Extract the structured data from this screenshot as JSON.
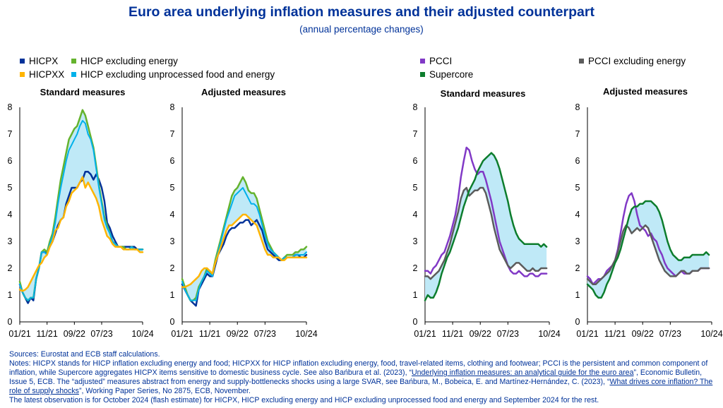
{
  "title": "Euro area underlying inflation measures and their adjusted counterpart",
  "subtitle": "(annual percentage changes)",
  "legend_left": [
    {
      "label": "HICPX",
      "color": "#003299"
    },
    {
      "label": "HICP excluding energy",
      "color": "#65b32e"
    },
    {
      "label": "HICPXX",
      "color": "#ffb400"
    },
    {
      "label": "HICP excluding unprocessed food and energy",
      "color": "#00b1ea"
    }
  ],
  "legend_right": [
    {
      "label": "PCCI",
      "color": "#8139c6"
    },
    {
      "label": "PCCI excluding energy",
      "color": "#5c5c5c"
    },
    {
      "label": "Supercore",
      "color": "#0d7d2d"
    }
  ],
  "notes": {
    "sources": "Sources: Eurostat and ECB staff calculations.",
    "n1": "Notes: HICPX stands for HICP inflation excluding energy and food; HICPXX for HICP inflation excluding energy, food, travel-related items, clothing and footwear; PCCI is the persistent and common component of inflation, while Supercore aggregates HICPX items sensitive to domestic business cycle. See also Bańbura et al. (2023), “",
    "link1": "Underlying inflation measures: an analytical guide for the euro area",
    "n2": "”, Economic Bulletin, Issue 5, ECB. The “adjusted” measures abstract from energy and supply-bottlenecks shocks using a large SVAR, see Bańbura, M., Bobeica, E. and Martínez-Hernández, C. (2023), “",
    "link2": "What drives core inflation? The role of supply shocks",
    "n3": "”, Working Paper Series, No 2875, ECB, November.",
    "latest": "The latest observation is for October 2024 (flash estimate) for HICPX, HICP excluding energy and HICP excluding unprocessed food and energy and September 2024 for the rest."
  },
  "chart_data": [
    {
      "type": "line",
      "title": "Standard measures",
      "ylim": [
        0,
        8
      ],
      "yticks": [
        "0",
        "1",
        "2",
        "3",
        "4",
        "5",
        "6",
        "7",
        "8"
      ],
      "xrange": [
        0,
        45
      ],
      "xticks": [
        {
          "label": "01/21",
          "x": 0
        },
        {
          "label": "11/21",
          "x": 10
        },
        {
          "label": "09/22",
          "x": 20
        },
        {
          "label": "07/23",
          "x": 30
        },
        {
          "label": "10/24",
          "x": 45
        }
      ],
      "shade_between": [
        "HICPXX",
        "HICP excluding energy"
      ],
      "shade_color": "#bfe9f7",
      "series": [
        {
          "name": "HICPX",
          "color": "#003299",
          "width": 2.5,
          "x0": 0,
          "values": [
            1.4,
            1.1,
            0.9,
            0.7,
            0.9,
            0.8,
            1.6,
            2.0,
            2.6,
            2.6,
            2.6,
            2.8,
            3.0,
            3.3,
            3.6,
            3.8,
            3.9,
            4.4,
            4.7,
            5.0,
            5.0,
            5.0,
            5.2,
            5.3,
            5.6,
            5.6,
            5.5,
            5.3,
            5.5,
            5.3,
            5.0,
            4.5,
            3.7,
            3.5,
            3.2,
            3.0,
            2.8,
            2.8,
            2.8,
            2.8,
            2.8,
            2.8,
            2.8,
            2.7,
            2.7,
            2.7
          ]
        },
        {
          "name": "HICP excluding energy",
          "color": "#65b32e",
          "width": 2.5,
          "x0": 0,
          "values": [
            1.5,
            1.1,
            0.9,
            0.8,
            0.9,
            0.9,
            1.6,
            2.0,
            2.6,
            2.7,
            2.6,
            3.0,
            3.3,
            3.9,
            4.6,
            5.3,
            5.8,
            6.3,
            6.8,
            7.0,
            7.2,
            7.3,
            7.6,
            7.9,
            7.7,
            7.3,
            6.9,
            6.5,
            5.8,
            5.1,
            4.5,
            3.9,
            3.6,
            3.3,
            3.0,
            2.9,
            2.8,
            2.8,
            2.8,
            2.7,
            2.7,
            2.8,
            2.7,
            2.7,
            2.7,
            2.7
          ]
        },
        {
          "name": "HICP excluding unprocessed food and energy",
          "color": "#00b1ea",
          "width": 2,
          "x0": 0,
          "values": [
            1.4,
            1.1,
            0.9,
            0.8,
            0.9,
            0.9,
            1.6,
            2.0,
            2.6,
            2.6,
            2.5,
            2.9,
            3.2,
            3.7,
            4.4,
            5.0,
            5.5,
            6.0,
            6.4,
            6.6,
            6.8,
            7.0,
            7.3,
            7.5,
            7.4,
            7.0,
            6.8,
            6.4,
            5.7,
            5.0,
            4.4,
            3.8,
            3.5,
            3.3,
            3.0,
            2.9,
            2.8,
            2.8,
            2.7,
            2.7,
            2.7,
            2.8,
            2.7,
            2.7,
            2.7,
            2.7
          ]
        },
        {
          "name": "HICPXX",
          "color": "#ffb400",
          "width": 2.5,
          "x0": 0,
          "values": [
            1.2,
            1.15,
            1.2,
            1.3,
            1.5,
            1.7,
            1.9,
            2.1,
            2.2,
            2.4,
            2.5,
            2.8,
            3.0,
            3.4,
            3.5,
            3.8,
            3.9,
            4.3,
            4.5,
            4.8,
            4.9,
            5.0,
            5.2,
            5.4,
            5.0,
            5.2,
            5.0,
            4.8,
            4.6,
            4.3,
            3.8,
            3.5,
            3.2,
            3.1,
            2.9,
            2.8,
            2.8,
            2.8,
            2.7,
            2.7,
            2.7,
            2.7,
            2.7,
            2.7,
            2.6,
            2.6
          ]
        }
      ]
    },
    {
      "type": "line",
      "title": "Adjusted measures",
      "ylim": [
        0,
        8
      ],
      "yticks": [
        "0",
        "1",
        "2",
        "3",
        "4",
        "5",
        "6",
        "7",
        "8"
      ],
      "xrange": [
        0,
        45
      ],
      "xticks": [
        {
          "label": "01/21",
          "x": 0
        },
        {
          "label": "11/21",
          "x": 10
        },
        {
          "label": "09/22",
          "x": 20
        },
        {
          "label": "07/23",
          "x": 30
        },
        {
          "label": "10/24",
          "x": 45
        }
      ],
      "shade_between": [
        "HICPXX",
        "HICP excluding energy"
      ],
      "shade_color": "#bfe9f7",
      "series": [
        {
          "name": "HICPX",
          "color": "#003299",
          "width": 2.5,
          "x0": 0,
          "values": [
            1.4,
            1.2,
            1.0,
            0.8,
            0.7,
            0.6,
            1.2,
            1.4,
            1.6,
            1.8,
            1.7,
            1.7,
            2.1,
            2.5,
            2.7,
            2.9,
            3.2,
            3.4,
            3.5,
            3.5,
            3.6,
            3.7,
            3.7,
            3.8,
            3.8,
            3.6,
            3.7,
            3.8,
            3.6,
            3.4,
            3.0,
            2.7,
            2.6,
            2.5,
            2.4,
            2.3,
            2.3,
            2.4,
            2.4,
            2.4,
            2.4,
            2.5,
            2.5,
            2.4,
            2.4,
            2.5
          ]
        },
        {
          "name": "HICP excluding energy",
          "color": "#65b32e",
          "width": 2.5,
          "x0": 0,
          "values": [
            1.6,
            1.3,
            1.0,
            0.8,
            0.8,
            0.9,
            1.3,
            1.5,
            1.7,
            2.0,
            1.8,
            1.8,
            2.3,
            2.7,
            3.1,
            3.5,
            3.9,
            4.3,
            4.7,
            4.9,
            5.0,
            5.2,
            5.4,
            5.2,
            4.9,
            4.8,
            4.8,
            4.6,
            4.2,
            3.8,
            3.4,
            3.0,
            2.8,
            2.6,
            2.5,
            2.4,
            2.3,
            2.4,
            2.5,
            2.5,
            2.5,
            2.6,
            2.6,
            2.7,
            2.7,
            2.8
          ]
        },
        {
          "name": "HICP excluding unprocessed food and energy",
          "color": "#00b1ea",
          "width": 2,
          "x0": 0,
          "values": [
            1.5,
            1.2,
            1.0,
            0.8,
            0.8,
            0.8,
            1.2,
            1.5,
            1.7,
            1.9,
            1.8,
            1.7,
            2.2,
            2.6,
            3.0,
            3.4,
            3.8,
            4.1,
            4.4,
            4.7,
            4.8,
            4.9,
            5.0,
            4.8,
            4.6,
            4.4,
            4.4,
            4.3,
            4.0,
            3.6,
            3.2,
            2.9,
            2.7,
            2.6,
            2.5,
            2.4,
            2.3,
            2.4,
            2.4,
            2.4,
            2.4,
            2.5,
            2.5,
            2.5,
            2.5,
            2.6
          ]
        },
        {
          "name": "HICPXX",
          "color": "#ffb400",
          "width": 2.5,
          "x0": 0,
          "values": [
            1.3,
            1.3,
            1.35,
            1.4,
            1.5,
            1.6,
            1.7,
            1.9,
            2.0,
            2.0,
            1.9,
            1.8,
            2.2,
            2.5,
            2.8,
            3.1,
            3.4,
            3.6,
            3.6,
            3.7,
            3.8,
            3.9,
            4.0,
            4.0,
            3.9,
            3.8,
            3.7,
            3.6,
            3.3,
            3.0,
            2.7,
            2.5,
            2.5,
            2.4,
            2.4,
            2.4,
            2.3,
            2.3,
            2.4,
            2.4,
            2.4,
            2.4,
            2.4,
            2.4,
            2.4,
            2.4
          ]
        }
      ]
    },
    {
      "type": "line",
      "title": "Standard measures",
      "ylim": [
        0,
        8
      ],
      "yticks": [
        "0",
        "1",
        "2",
        "3",
        "4",
        "5",
        "6",
        "7",
        "8"
      ],
      "xrange": [
        0,
        45
      ],
      "xticks": [
        {
          "label": "01/21",
          "x": 0
        },
        {
          "label": "11/21",
          "x": 10
        },
        {
          "label": "09/22",
          "x": 20
        },
        {
          "label": "07/23",
          "x": 30
        },
        {
          "label": "10/24",
          "x": 45
        }
      ],
      "shade_between": [
        "PCCI excluding energy",
        "Supercore"
      ],
      "shade_color": "#bfe9f7",
      "series": [
        {
          "name": "PCCI",
          "color": "#8139c6",
          "width": 2.5,
          "x0": 0,
          "values": [
            1.9,
            1.9,
            1.8,
            2.0,
            2.1,
            2.3,
            2.5,
            2.6,
            2.9,
            3.2,
            3.6,
            4.0,
            4.6,
            5.4,
            6.0,
            6.5,
            6.4,
            6.0,
            5.7,
            5.5,
            5.6,
            5.6,
            5.3,
            4.9,
            4.5,
            4.0,
            3.5,
            3.0,
            2.7,
            2.4,
            2.1,
            1.9,
            1.8,
            1.8,
            1.9,
            1.8,
            1.7,
            1.7,
            1.8,
            1.8,
            1.7,
            1.7,
            1.8,
            1.8,
            1.8
          ]
        },
        {
          "name": "PCCI excluding energy",
          "color": "#5c5c5c",
          "width": 2.5,
          "x0": 0,
          "values": [
            1.7,
            1.7,
            1.6,
            1.7,
            1.8,
            1.9,
            2.1,
            2.3,
            2.6,
            2.9,
            3.3,
            3.7,
            4.1,
            4.6,
            4.9,
            5.0,
            4.7,
            4.8,
            4.9,
            4.9,
            5.0,
            5.0,
            4.8,
            4.4,
            4.0,
            3.5,
            3.1,
            2.7,
            2.5,
            2.3,
            2.1,
            2.0,
            2.1,
            2.2,
            2.2,
            2.1,
            2.0,
            1.9,
            1.9,
            2.0,
            1.9,
            1.9,
            2.0,
            2.0,
            2.0
          ]
        },
        {
          "name": "Supercore",
          "color": "#0d7d2d",
          "width": 2.5,
          "x0": 0,
          "values": [
            0.8,
            1.0,
            0.9,
            0.9,
            1.1,
            1.4,
            1.8,
            2.1,
            2.4,
            2.6,
            2.9,
            3.2,
            3.5,
            3.9,
            4.3,
            4.6,
            4.9,
            5.1,
            5.3,
            5.6,
            5.8,
            6.0,
            6.1,
            6.2,
            6.3,
            6.2,
            6.0,
            5.7,
            5.3,
            4.9,
            4.5,
            4.0,
            3.6,
            3.3,
            3.1,
            3.0,
            2.9,
            2.9,
            2.9,
            2.9,
            2.9,
            2.9,
            2.8,
            2.9,
            2.8
          ]
        }
      ]
    },
    {
      "type": "line",
      "title": "Adjusted measures",
      "ylim": [
        0,
        8
      ],
      "yticks": [
        "0",
        "1",
        "2",
        "3",
        "4",
        "5",
        "6",
        "7",
        "8"
      ],
      "xrange": [
        0,
        45
      ],
      "xticks": [
        {
          "label": "01/21",
          "x": 0
        },
        {
          "label": "11/21",
          "x": 10
        },
        {
          "label": "09/22",
          "x": 20
        },
        {
          "label": "07/23",
          "x": 30
        },
        {
          "label": "10/24",
          "x": 45
        }
      ],
      "shade_between": [
        "PCCI excluding energy",
        "Supercore"
      ],
      "shade_color": "#bfe9f7",
      "series": [
        {
          "name": "PCCI",
          "color": "#8139c6",
          "width": 2.5,
          "x0": 0,
          "values": [
            1.7,
            1.6,
            1.4,
            1.5,
            1.6,
            1.6,
            1.7,
            1.9,
            2.0,
            2.1,
            2.3,
            2.7,
            3.3,
            3.9,
            4.4,
            4.7,
            4.8,
            4.5,
            4.0,
            3.6,
            3.5,
            3.4,
            3.2,
            3.3,
            3.1,
            3.0,
            2.7,
            2.5,
            2.2,
            2.0,
            1.9,
            1.8,
            1.7,
            1.8,
            1.9,
            1.8,
            1.8,
            1.8,
            1.9,
            1.9,
            1.9,
            2.0,
            2.0,
            2.0,
            2.0
          ]
        },
        {
          "name": "PCCI excluding energy",
          "color": "#5c5c5c",
          "width": 2.5,
          "x0": 0,
          "values": [
            1.6,
            1.5,
            1.4,
            1.4,
            1.5,
            1.6,
            1.7,
            1.8,
            1.9,
            2.1,
            2.3,
            2.6,
            3.0,
            3.4,
            3.6,
            3.5,
            3.3,
            3.4,
            3.5,
            3.4,
            3.5,
            3.6,
            3.5,
            3.2,
            2.9,
            2.6,
            2.3,
            2.1,
            1.9,
            1.8,
            1.7,
            1.7,
            1.7,
            1.8,
            1.9,
            1.9,
            1.8,
            1.8,
            1.9,
            1.9,
            1.9,
            2.0,
            2.0,
            2.0,
            2.0
          ]
        },
        {
          "name": "Supercore",
          "color": "#0d7d2d",
          "width": 2.5,
          "x0": 0,
          "values": [
            1.4,
            1.3,
            1.2,
            1.0,
            0.9,
            0.9,
            1.1,
            1.4,
            1.6,
            1.9,
            2.2,
            2.4,
            2.7,
            3.1,
            3.5,
            3.9,
            4.2,
            4.3,
            4.3,
            4.4,
            4.4,
            4.5,
            4.5,
            4.5,
            4.4,
            4.3,
            4.1,
            3.8,
            3.4,
            3.0,
            2.7,
            2.5,
            2.4,
            2.3,
            2.3,
            2.4,
            2.4,
            2.4,
            2.5,
            2.5,
            2.5,
            2.5,
            2.5,
            2.6,
            2.5
          ]
        }
      ]
    }
  ]
}
